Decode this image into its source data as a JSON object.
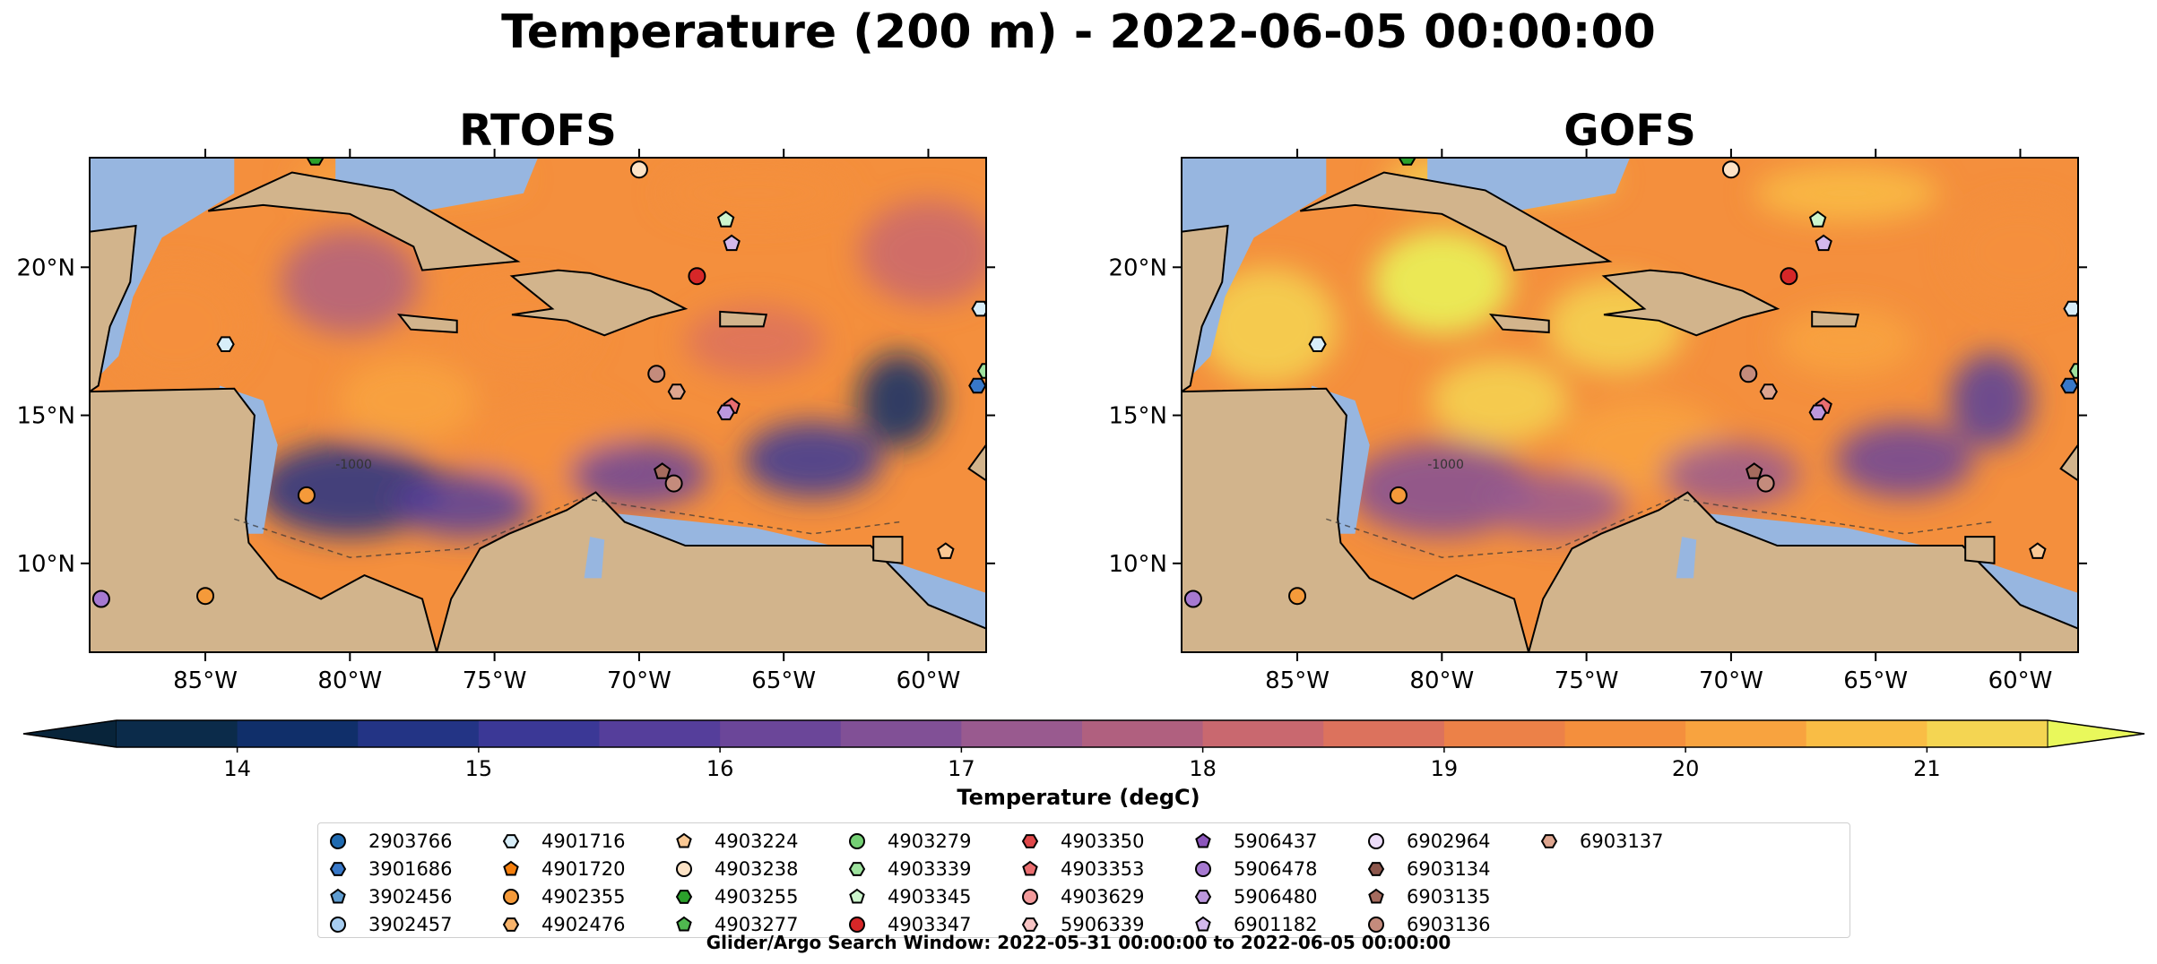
{
  "suptitle": "Temperature (200 m) - 2022-06-05 00:00:00",
  "footer": "Glider/Argo Search Window: 2022-05-31 00:00:00 to 2022-06-05 00:00:00",
  "colorbar": {
    "label": "Temperature (degC)",
    "ticks": [
      "14",
      "15",
      "16",
      "17",
      "18",
      "19",
      "20",
      "21"
    ],
    "tick_values": [
      14,
      15,
      16,
      17,
      18,
      19,
      20,
      21
    ],
    "range": [
      13.5,
      21.5
    ],
    "step": 0.5,
    "colors": [
      "#0b2b4a",
      "#102f6a",
      "#233485",
      "#3b3896",
      "#553e9b",
      "#6b4699",
      "#815096",
      "#995a8f",
      "#b0607f",
      "#c9686f",
      "#dc725d",
      "#ec8148",
      "#f48f3d",
      "#f8a33f",
      "#f9bd45",
      "#f4d552"
    ],
    "extend_high_color": "#e9f85b",
    "extend_low_color": "#08243a"
  },
  "chart_data": {
    "type": "heatmap",
    "panels": [
      {
        "title": "RTOFS",
        "model": "RTOFS"
      },
      {
        "title": "GOFS",
        "model": "GOFS"
      }
    ],
    "xlim": [
      -89,
      -58
    ],
    "ylim": [
      7,
      23.7
    ],
    "x_ticks": [
      -85,
      -80,
      -75,
      -70,
      -65,
      -60
    ],
    "x_tick_labels": [
      "85°W",
      "80°W",
      "75°W",
      "70°W",
      "65°W",
      "60°W"
    ],
    "y_ticks": [
      10,
      15,
      20
    ],
    "y_tick_labels": [
      "10°N",
      "15°N",
      "20°N"
    ],
    "contour_label": "-1000",
    "colors": {
      "land": "#d2b48c",
      "shelf": "#97b6e0",
      "coast": "#000000"
    },
    "legend": [
      {
        "id": "2903766",
        "marker": "circle",
        "color": "#1f6ab0"
      },
      {
        "id": "3901686",
        "marker": "hexagon",
        "color": "#3878c8"
      },
      {
        "id": "3902456",
        "marker": "pentagon",
        "color": "#5f9dd1"
      },
      {
        "id": "3902457",
        "marker": "circle",
        "color": "#a7cdf0"
      },
      {
        "id": "4901716",
        "marker": "hexagon",
        "color": "#d8eef9"
      },
      {
        "id": "4901720",
        "marker": "pentagon",
        "color": "#f57f0e"
      },
      {
        "id": "4902355",
        "marker": "circle",
        "color": "#f59a3a"
      },
      {
        "id": "4902476",
        "marker": "hexagon",
        "color": "#f7b36b"
      },
      {
        "id": "4903224",
        "marker": "pentagon",
        "color": "#f9c894"
      },
      {
        "id": "4903238",
        "marker": "circle",
        "color": "#fde3c6"
      },
      {
        "id": "4903255",
        "marker": "hexagon",
        "color": "#2ba02b"
      },
      {
        "id": "4903277",
        "marker": "pentagon",
        "color": "#4fb84f"
      },
      {
        "id": "4903279",
        "marker": "circle",
        "color": "#74cf74"
      },
      {
        "id": "4903339",
        "marker": "hexagon",
        "color": "#9ee29e"
      },
      {
        "id": "4903345",
        "marker": "pentagon",
        "color": "#cdf5cd"
      },
      {
        "id": "4903347",
        "marker": "circle",
        "color": "#d62728"
      },
      {
        "id": "4903350",
        "marker": "hexagon",
        "color": "#e0484a"
      },
      {
        "id": "4903353",
        "marker": "pentagon",
        "color": "#ea6e70"
      },
      {
        "id": "4903629",
        "marker": "circle",
        "color": "#f29a9b"
      },
      {
        "id": "5906339",
        "marker": "hexagon",
        "color": "#f8c4c4"
      },
      {
        "id": "5906437",
        "marker": "pentagon",
        "color": "#8c56bc"
      },
      {
        "id": "5906478",
        "marker": "circle",
        "color": "#a679d0"
      },
      {
        "id": "5906480",
        "marker": "hexagon",
        "color": "#bc97dd"
      },
      {
        "id": "6901182",
        "marker": "pentagon",
        "color": "#d3b8ec"
      },
      {
        "id": "6902964",
        "marker": "circle",
        "color": "#ecdcf9"
      },
      {
        "id": "6903134",
        "marker": "hexagon",
        "color": "#8c564b"
      },
      {
        "id": "6903135",
        "marker": "pentagon",
        "color": "#a56b5e"
      },
      {
        "id": "6903136",
        "marker": "circle",
        "color": "#c48b7c"
      },
      {
        "id": "6903137",
        "marker": "hexagon",
        "color": "#dea58f"
      }
    ],
    "floats": [
      {
        "id": "3901686",
        "lon": -58.3,
        "lat": 16.0
      },
      {
        "id": "4901716",
        "lon": -84.3,
        "lat": 17.4
      },
      {
        "id": "4901716",
        "lon": -58.2,
        "lat": 18.6
      },
      {
        "id": "4903238",
        "lon": -70.0,
        "lat": 23.3
      },
      {
        "id": "4903255",
        "lon": -81.2,
        "lat": 23.7
      },
      {
        "id": "4903339",
        "lon": -58.0,
        "lat": 16.5
      },
      {
        "id": "4903345",
        "lon": -67.0,
        "lat": 21.6
      },
      {
        "id": "6901182",
        "lon": -66.8,
        "lat": 20.8
      },
      {
        "id": "4903347",
        "lon": -68.0,
        "lat": 19.7
      },
      {
        "id": "6903136",
        "lon": -69.4,
        "lat": 16.4
      },
      {
        "id": "6903137",
        "lon": -68.7,
        "lat": 15.8
      },
      {
        "id": "4903353",
        "lon": -66.8,
        "lat": 15.3
      },
      {
        "id": "5906480",
        "lon": -67.0,
        "lat": 15.1
      },
      {
        "id": "6903135",
        "lon": -69.2,
        "lat": 13.1
      },
      {
        "id": "6903136",
        "lon": -68.8,
        "lat": 12.7
      },
      {
        "id": "4902355",
        "lon": -81.5,
        "lat": 12.3
      },
      {
        "id": "4903224",
        "lon": -59.4,
        "lat": 10.4
      },
      {
        "id": "5906478",
        "lon": -88.6,
        "lat": 8.8
      },
      {
        "id": "4902355",
        "lon": -85.0,
        "lat": 8.9
      }
    ]
  }
}
